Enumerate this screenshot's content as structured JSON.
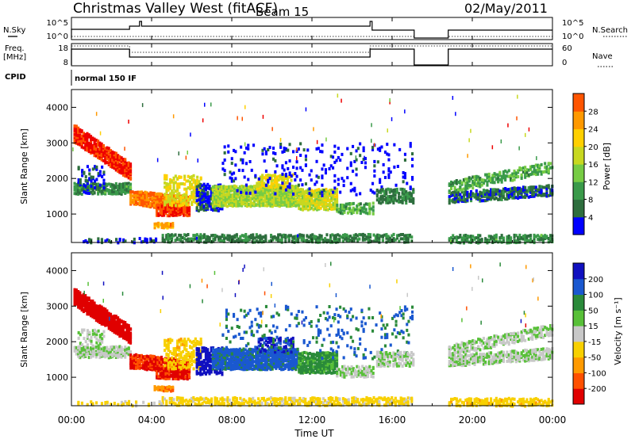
{
  "header": {
    "station": "Christmas Valley West (fitACF)",
    "beam": "Beam 15",
    "date": "02/May/2011"
  },
  "top_panels": {
    "nsky_label": "N.Sky",
    "nsky_ticks": [
      "10^5",
      "10^0"
    ],
    "nsearch_label": "N.Search",
    "nsearch_ticks": [
      "10^5",
      "10^0"
    ],
    "freq_label_1": "Freq.",
    "freq_label_2": "[MHz]",
    "freq_ticks": [
      "18",
      "8"
    ],
    "nave_label": "Nave",
    "nave_ticks": [
      "60",
      "0"
    ],
    "cpid_label": "CPID",
    "cpid_value": "normal 150 IF"
  },
  "colors": {
    "power": [
      "#0000ff",
      "#2e6e3e",
      "#3a9a4a",
      "#77cc44",
      "#c8d820",
      "#ffd000",
      "#ff9900",
      "#ff5500",
      "#ee0000"
    ],
    "velocity": [
      "#1010c0",
      "#1a58d0",
      "#2a8a3a",
      "#58c038",
      "#c8c8c8",
      "#f8d000",
      "#ff9a00",
      "#ff5000",
      "#e00000"
    ],
    "gray": "#c0c0c0"
  },
  "chart_data": [
    {
      "type": "heatmap",
      "name": "power",
      "ylabel": "Slant Range [km]",
      "yticks": [
        1000,
        2000,
        3000,
        4000
      ],
      "ylim": [
        200,
        4500
      ],
      "colorbar_label": "Power [dB]",
      "colorbar_ticks": [
        "4",
        "8",
        "12",
        "16",
        "20",
        "24",
        "28"
      ],
      "colorbar_range": [
        0,
        32
      ],
      "xlabel": "Time UT",
      "xticks": [
        "00:00",
        "04:00",
        "08:00",
        "12:00",
        "16:00",
        "20:00",
        "00:00"
      ],
      "xlim_hours": [
        0,
        24
      ],
      "data_gap_hours": [
        17.1,
        18.8
      ]
    },
    {
      "type": "heatmap",
      "name": "velocity",
      "ylabel": "Slant Range [km]",
      "yticks": [
        1000,
        2000,
        3000,
        4000
      ],
      "ylim": [
        200,
        4500
      ],
      "colorbar_label": "Velocity [m s⁻¹]",
      "colorbar_ticks": [
        "-200",
        "-100",
        "-50",
        "-15",
        "15",
        "50",
        "100",
        "200"
      ],
      "colorbar_range": [
        -250,
        250
      ],
      "xlabel": "Time UT",
      "xticks": [
        "00:00",
        "04:00",
        "08:00",
        "12:00",
        "16:00",
        "20:00",
        "00:00"
      ],
      "xlim_hours": [
        0,
        24
      ],
      "data_gap_hours": [
        17.1,
        18.8
      ]
    }
  ]
}
